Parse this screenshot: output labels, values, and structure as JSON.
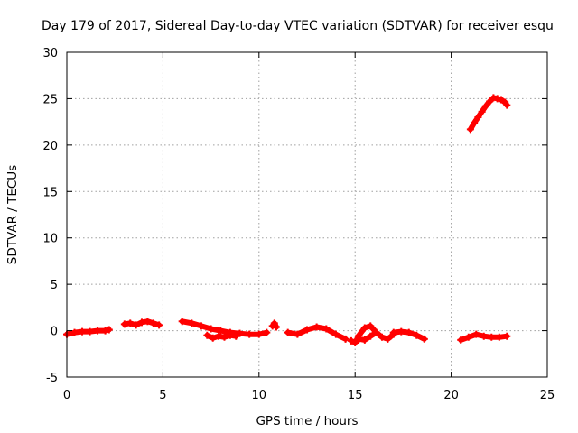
{
  "chart_data": {
    "type": "scatter",
    "title": "Day 179 of 2017, Sidereal Day-to-day VTEC variation (SDTVAR) for receiver esqu",
    "xlabel": "GPS time / hours",
    "ylabel": "SDTVAR / TECUs",
    "xlim": [
      0,
      25
    ],
    "ylim": [
      -5,
      30
    ],
    "grid": true,
    "x_ticks": [
      "0",
      "5",
      "10",
      "15",
      "20",
      "25"
    ],
    "y_ticks": [
      "-5",
      "0",
      "5",
      "10",
      "15",
      "20",
      "25",
      "30"
    ],
    "marker_color": "#ff0000",
    "series": [
      {
        "name": "seg1",
        "x": [
          0.0,
          0.4,
          0.8,
          1.2,
          1.6,
          2.0,
          2.2
        ],
        "y": [
          -0.4,
          -0.2,
          -0.1,
          -0.1,
          0.0,
          0.0,
          0.1
        ]
      },
      {
        "name": "seg2",
        "x": [
          3.0,
          3.3,
          3.6,
          3.9,
          4.2,
          4.5,
          4.8
        ],
        "y": [
          0.7,
          0.8,
          0.6,
          0.9,
          1.0,
          0.8,
          0.6
        ]
      },
      {
        "name": "seg3",
        "x": [
          6.0,
          6.5,
          7.0,
          7.5,
          8.0,
          8.5,
          9.0,
          9.5,
          10.0,
          10.4
        ],
        "y": [
          1.0,
          0.8,
          0.5,
          0.2,
          0.0,
          -0.2,
          -0.3,
          -0.4,
          -0.4,
          -0.2
        ]
      },
      {
        "name": "seg3b",
        "x": [
          7.3,
          7.6,
          7.9,
          8.2,
          8.5,
          8.8
        ],
        "y": [
          -0.5,
          -0.8,
          -0.6,
          -0.7,
          -0.5,
          -0.6
        ]
      },
      {
        "name": "seg4",
        "x": [
          10.7,
          10.8,
          10.9
        ],
        "y": [
          0.5,
          0.8,
          0.4
        ]
      },
      {
        "name": "seg5",
        "x": [
          11.5,
          12.0,
          12.5,
          13.0,
          13.5,
          14.0,
          14.5
        ],
        "y": [
          -0.2,
          -0.4,
          0.1,
          0.4,
          0.2,
          -0.4,
          -0.9
        ]
      },
      {
        "name": "seg6",
        "x": [
          14.8,
          15.0,
          15.2,
          15.5,
          15.8,
          16.1,
          16.4,
          16.7,
          17.0
        ],
        "y": [
          -1.1,
          -1.3,
          -0.5,
          0.3,
          0.5,
          -0.2,
          -0.7,
          -0.9,
          -0.4
        ]
      },
      {
        "name": "seg6b",
        "x": [
          15.2,
          15.5,
          15.8,
          16.1
        ],
        "y": [
          -0.9,
          -1.0,
          -0.6,
          -0.2
        ]
      },
      {
        "name": "seg7",
        "x": [
          17.0,
          17.4,
          17.8,
          18.2,
          18.6
        ],
        "y": [
          -0.2,
          -0.1,
          -0.2,
          -0.5,
          -0.9
        ]
      },
      {
        "name": "seg8",
        "x": [
          20.5,
          20.9,
          21.3,
          21.7,
          22.1,
          22.5,
          22.9
        ],
        "y": [
          -1.0,
          -0.7,
          -0.4,
          -0.6,
          -0.7,
          -0.7,
          -0.6
        ]
      },
      {
        "name": "seg9",
        "x": [
          21.0,
          21.2,
          21.4,
          21.6,
          21.8,
          22.0,
          22.2,
          22.4,
          22.6,
          22.8,
          22.9
        ],
        "y": [
          21.7,
          22.4,
          23.0,
          23.6,
          24.2,
          24.7,
          25.1,
          25.0,
          24.9,
          24.6,
          24.3
        ]
      }
    ]
  }
}
